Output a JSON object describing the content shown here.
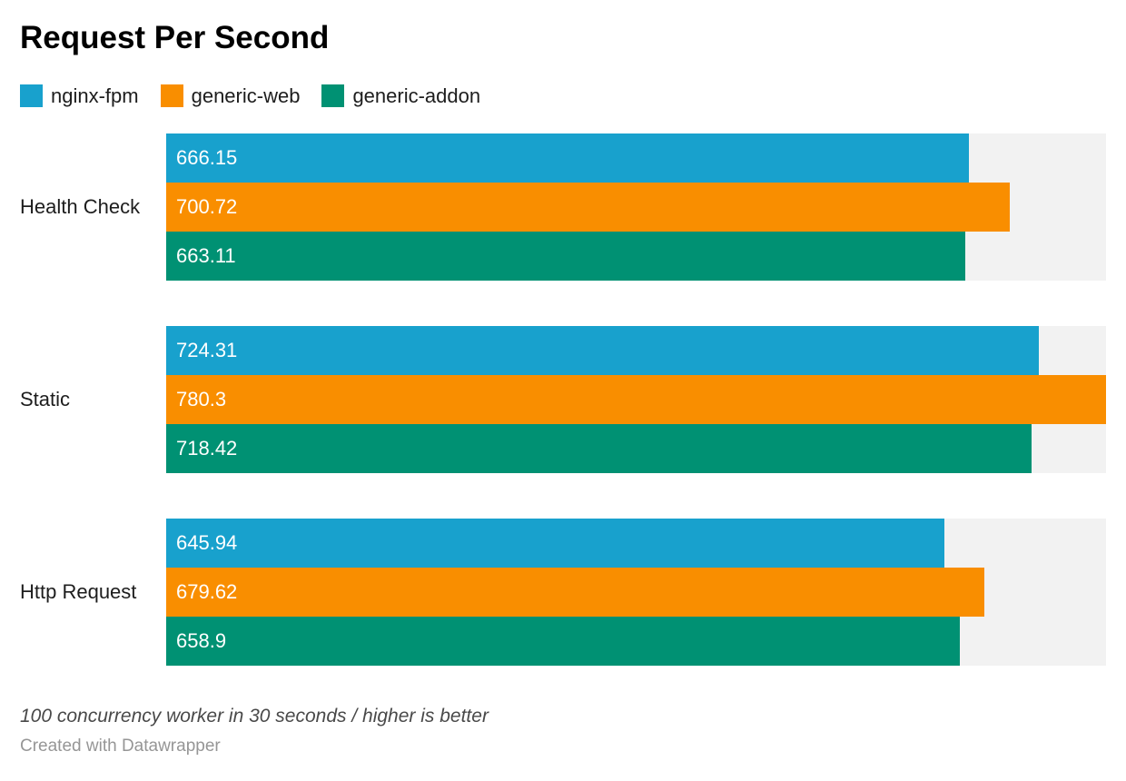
{
  "title": "Request Per Second",
  "legend": [
    {
      "label": "nginx-fpm",
      "color": "#18a1cd"
    },
    {
      "label": "generic-web",
      "color": "#f98e00"
    },
    {
      "label": "generic-addon",
      "color": "#009173"
    }
  ],
  "chart_data": {
    "type": "bar",
    "orientation": "horizontal",
    "title": "Request Per Second",
    "categories": [
      "Health Check",
      "Static",
      "Http Request"
    ],
    "series": [
      {
        "name": "nginx-fpm",
        "color": "#18a1cd",
        "values": [
          666.15,
          724.31,
          645.94
        ]
      },
      {
        "name": "generic-web",
        "color": "#f98e00",
        "values": [
          700.72,
          780.3,
          679.62
        ]
      },
      {
        "name": "generic-addon",
        "color": "#009173",
        "values": [
          663.11,
          718.42,
          658.9
        ]
      }
    ],
    "xlim": [
      0,
      780.3
    ],
    "value_labels_shown": true,
    "grid": false,
    "legend_position": "top",
    "track_color": "#f2f2f2"
  },
  "footer": {
    "note": "100 concurrency worker in 30 seconds / higher is better",
    "credit": "Created with Datawrapper"
  }
}
